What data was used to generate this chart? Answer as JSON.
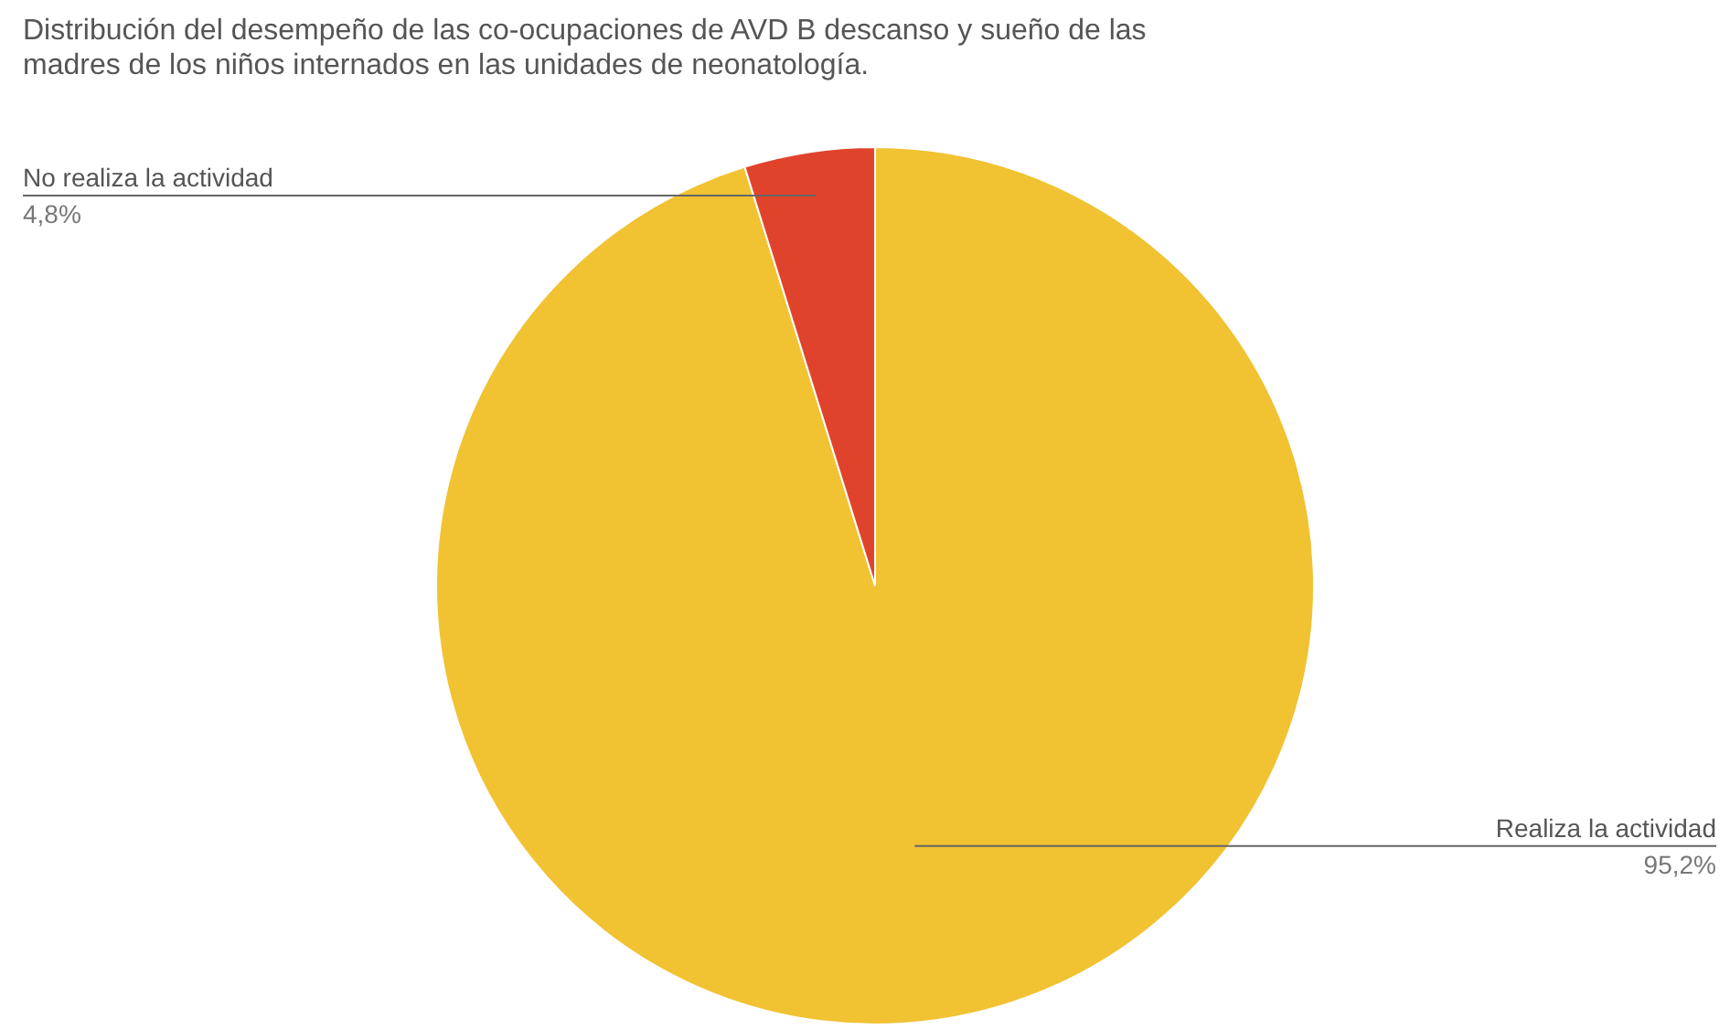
{
  "chart_data": {
    "type": "pie",
    "title": "Distribución del desempeño de las co-ocupaciones  de AVD B  descanso y sueño de las madres de los niños internados en las unidades de neonatología.",
    "categories": [
      "Realiza la actividad",
      "No realiza la actividad"
    ],
    "values": [
      95.2,
      4.8
    ],
    "colors": [
      "#f1c232",
      "#e0432b"
    ],
    "value_labels": [
      "95,2%",
      "4,8%"
    ]
  }
}
